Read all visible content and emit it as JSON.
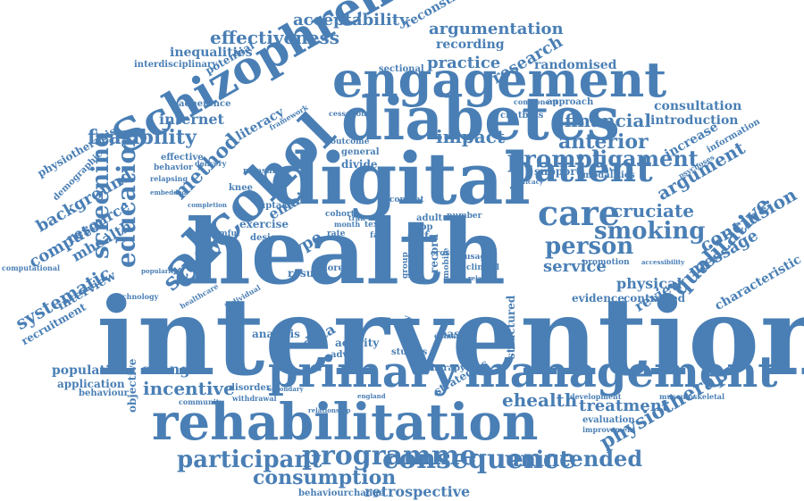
{
  "colors": {
    "word": "#4a7fb5",
    "background": "#ffffff"
  },
  "words": [
    "intervention",
    "health",
    "digital",
    "diabetes",
    "engagement",
    "Schizophrenia",
    "alcohol",
    "primary",
    "management",
    "rehabilitation",
    "patient",
    "care",
    "education",
    "screening",
    "consequence",
    "programme",
    "participant",
    "unintended",
    "consumption",
    "retrospective",
    "behaviourchange",
    "physiotherapy",
    "treatment",
    "ehealth",
    "conclusion",
    "message",
    "characteristic",
    "qualitative",
    "smoking",
    "cruciate",
    "argument",
    "ligament",
    "prompt",
    "anterior",
    "financial",
    "research",
    "practice",
    "impact",
    "feasibility",
    "method",
    "literacy",
    "internet",
    "effectiveness",
    "acceptability",
    "argumentation",
    "reconstruction",
    "recording",
    "randomised",
    "consultation",
    "introduction",
    "increase",
    "information",
    "person",
    "service",
    "review",
    "physical",
    "controlled",
    "evidence",
    "study",
    "type",
    "email",
    "background",
    "resource",
    "mhealth",
    "computer",
    "systematic",
    "interview",
    "recruitment",
    "population",
    "application",
    "behaviour",
    "objective",
    "change",
    "incentive",
    "data",
    "analysis",
    "activity",
    "advice",
    "studies",
    "based",
    "strategies",
    "disorder",
    "community",
    "withdrawal",
    "inequalities",
    "interdisciplinary",
    "potential",
    "physiotherapist",
    "demographic",
    "adherence",
    "sectional",
    "approach",
    "component",
    "chatbots",
    "effective",
    "behavior",
    "relapsing",
    "exercise",
    "design",
    "uptake",
    "harmful",
    "self",
    "structured",
    "therapy",
    "evaluation",
    "improvement",
    "development",
    "musculoskeletal",
    "promotion",
    "modalities",
    "support",
    "technology",
    "popularity",
    "computational",
    "healthcare",
    "individual",
    "measure",
    "knee",
    "divide",
    "general",
    "outcome",
    "cessation",
    "framework",
    "delivery",
    "content",
    "adult",
    "app",
    "trial",
    "record",
    "number",
    "cohort",
    "month",
    "face",
    "text",
    "rate",
    "result",
    "more",
    "trak",
    "quality",
    "secondary",
    "relationship",
    "diamond",
    "accessibility",
    "efficacy",
    "psychoses",
    "embedded",
    "completion",
    "england",
    "demand",
    "usage",
    "clinical",
    "cross",
    "related",
    "mobile",
    "group"
  ]
}
